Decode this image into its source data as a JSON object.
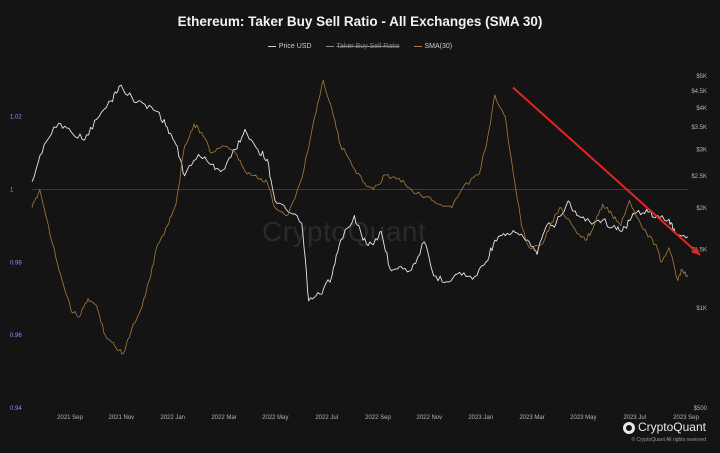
{
  "chart_data": {
    "type": "line",
    "title": "Ethereum: Taker Buy Sell Ratio - All Exchanges (SMA 30)",
    "legend_position": "top-center",
    "legend": [
      {
        "name": "Price USD",
        "color": "#e6e6e6",
        "visible": true
      },
      {
        "name": "Taker Buy Sell Ratio",
        "color": "#8a8a8a",
        "visible": false
      },
      {
        "name": "SMA(30)",
        "color": "#a87a3c",
        "visible": true
      }
    ],
    "x_ticks": [
      "2021 Sep",
      "2021 Nov",
      "2022 Jan",
      "2022 Mar",
      "2022 May",
      "2022 Jul",
      "2022 Sep",
      "2022 Nov",
      "2023 Jan",
      "2023 Mar",
      "2023 May",
      "2023 Jul",
      "2023 Sep"
    ],
    "x_range": [
      "2021-08-01",
      "2023-09-01"
    ],
    "left_axis": {
      "scale": "linear",
      "range": [
        0.94,
        1.035
      ],
      "ticks": [
        "0.94",
        "0.96",
        "0.98",
        "1",
        "1.02"
      ],
      "tick_values": [
        0.94,
        0.96,
        0.98,
        1,
        1.02
      ],
      "color": "#8f8fff"
    },
    "right_axis": {
      "scale": "log",
      "range": [
        500,
        5500
      ],
      "ticks": [
        "$500",
        "$1K",
        "$1.5K",
        "$2K",
        "$2.5K",
        "$3K",
        "$3.5K",
        "$4K",
        "$4.5K",
        "$5K"
      ],
      "tick_values": [
        500,
        1000,
        1500,
        2000,
        2500,
        3000,
        3500,
        4000,
        4500,
        5000
      ]
    },
    "reference_line": 1,
    "grid": false,
    "series": [
      {
        "name": "Price USD",
        "axis": "right",
        "color": "#e6e6e6",
        "points": [
          [
            "2021-08-01",
            2400
          ],
          [
            "2021-08-15",
            3100
          ],
          [
            "2021-09-01",
            3600
          ],
          [
            "2021-09-15",
            3400
          ],
          [
            "2021-10-01",
            3200
          ],
          [
            "2021-10-15",
            3700
          ],
          [
            "2021-11-01",
            4200
          ],
          [
            "2021-11-10",
            4650
          ],
          [
            "2021-11-25",
            4300
          ],
          [
            "2021-12-10",
            4100
          ],
          [
            "2021-12-25",
            3900
          ],
          [
            "2022-01-05",
            3500
          ],
          [
            "2022-01-15",
            3100
          ],
          [
            "2022-01-25",
            2500
          ],
          [
            "2022-02-10",
            2900
          ],
          [
            "2022-02-25",
            2700
          ],
          [
            "2022-03-10",
            2600
          ],
          [
            "2022-03-25",
            3000
          ],
          [
            "2022-04-05",
            3450
          ],
          [
            "2022-04-20",
            3000
          ],
          [
            "2022-05-01",
            2800
          ],
          [
            "2022-05-10",
            2100
          ],
          [
            "2022-05-25",
            1950
          ],
          [
            "2022-06-10",
            1800
          ],
          [
            "2022-06-18",
            1050
          ],
          [
            "2022-07-01",
            1100
          ],
          [
            "2022-07-15",
            1250
          ],
          [
            "2022-07-25",
            1600
          ],
          [
            "2022-08-10",
            1900
          ],
          [
            "2022-08-20",
            1600
          ],
          [
            "2022-09-01",
            1550
          ],
          [
            "2022-09-10",
            1700
          ],
          [
            "2022-09-20",
            1320
          ],
          [
            "2022-10-01",
            1330
          ],
          [
            "2022-10-15",
            1300
          ],
          [
            "2022-10-30",
            1580
          ],
          [
            "2022-11-10",
            1250
          ],
          [
            "2022-11-25",
            1200
          ],
          [
            "2022-12-10",
            1280
          ],
          [
            "2022-12-25",
            1220
          ],
          [
            "2023-01-10",
            1380
          ],
          [
            "2023-01-20",
            1600
          ],
          [
            "2023-02-01",
            1650
          ],
          [
            "2023-02-15",
            1680
          ],
          [
            "2023-03-01",
            1580
          ],
          [
            "2023-03-10",
            1450
          ],
          [
            "2023-03-20",
            1750
          ],
          [
            "2023-04-01",
            1800
          ],
          [
            "2023-04-15",
            2100
          ],
          [
            "2023-04-25",
            1900
          ],
          [
            "2023-05-10",
            1820
          ],
          [
            "2023-05-25",
            1840
          ],
          [
            "2023-06-10",
            1720
          ],
          [
            "2023-06-20",
            1750
          ],
          [
            "2023-07-01",
            1920
          ],
          [
            "2023-07-15",
            1980
          ],
          [
            "2023-07-25",
            1870
          ],
          [
            "2023-08-10",
            1850
          ],
          [
            "2023-08-17",
            1680
          ],
          [
            "2023-09-01",
            1640
          ]
        ]
      },
      {
        "name": "SMA(30)",
        "axis": "left",
        "color": "#a87a3c",
        "points": [
          [
            "2021-08-01",
            0.995
          ],
          [
            "2021-08-10",
            1.0
          ],
          [
            "2021-08-25",
            0.985
          ],
          [
            "2021-09-05",
            0.975
          ],
          [
            "2021-09-15",
            0.967
          ],
          [
            "2021-09-25",
            0.965
          ],
          [
            "2021-10-05",
            0.97
          ],
          [
            "2021-10-15",
            0.968
          ],
          [
            "2021-10-25",
            0.96
          ],
          [
            "2021-11-05",
            0.957
          ],
          [
            "2021-11-15",
            0.955
          ],
          [
            "2021-11-25",
            0.962
          ],
          [
            "2021-12-05",
            0.967
          ],
          [
            "2021-12-15",
            0.975
          ],
          [
            "2021-12-25",
            0.985
          ],
          [
            "2022-01-05",
            0.99
          ],
          [
            "2022-01-15",
            0.996
          ],
          [
            "2022-01-25",
            1.012
          ],
          [
            "2022-02-05",
            1.018
          ],
          [
            "2022-02-15",
            1.015
          ],
          [
            "2022-02-25",
            1.01
          ],
          [
            "2022-03-10",
            1.012
          ],
          [
            "2022-03-25",
            1.01
          ],
          [
            "2022-04-05",
            1.005
          ],
          [
            "2022-04-20",
            1.003
          ],
          [
            "2022-05-01",
            1.002
          ],
          [
            "2022-05-10",
            0.995
          ],
          [
            "2022-05-25",
            0.993
          ],
          [
            "2022-06-10",
            1.003
          ],
          [
            "2022-06-25",
            1.02
          ],
          [
            "2022-07-05",
            1.03
          ],
          [
            "2022-07-15",
            1.022
          ],
          [
            "2022-07-25",
            1.012
          ],
          [
            "2022-08-05",
            1.008
          ],
          [
            "2022-08-20",
            1.002
          ],
          [
            "2022-09-01",
            1.0
          ],
          [
            "2022-09-15",
            1.004
          ],
          [
            "2022-10-01",
            1.003
          ],
          [
            "2022-10-15",
            1.0
          ],
          [
            "2022-11-01",
            0.998
          ],
          [
            "2022-11-15",
            0.996
          ],
          [
            "2022-12-01",
            0.995
          ],
          [
            "2022-12-15",
            1.001
          ],
          [
            "2023-01-01",
            1.004
          ],
          [
            "2023-01-10",
            1.012
          ],
          [
            "2023-01-20",
            1.026
          ],
          [
            "2023-02-01",
            1.02
          ],
          [
            "2023-02-10",
            1.005
          ],
          [
            "2023-02-20",
            0.99
          ],
          [
            "2023-03-01",
            0.984
          ],
          [
            "2023-03-15",
            0.985
          ],
          [
            "2023-03-25",
            0.99
          ],
          [
            "2023-04-05",
            0.995
          ],
          [
            "2023-04-15",
            0.992
          ],
          [
            "2023-04-25",
            0.988
          ],
          [
            "2023-05-05",
            0.986
          ],
          [
            "2023-05-15",
            0.99
          ],
          [
            "2023-05-25",
            0.996
          ],
          [
            "2023-06-05",
            0.993
          ],
          [
            "2023-06-15",
            0.99
          ],
          [
            "2023-06-25",
            0.997
          ],
          [
            "2023-07-05",
            0.992
          ],
          [
            "2023-07-15",
            0.988
          ],
          [
            "2023-07-25",
            0.985
          ],
          [
            "2023-08-01",
            0.98
          ],
          [
            "2023-08-10",
            0.984
          ],
          [
            "2023-08-20",
            0.975
          ],
          [
            "2023-08-25",
            0.978
          ],
          [
            "2023-09-01",
            0.976
          ]
        ]
      }
    ],
    "annotation": {
      "type": "arrow",
      "color": "#e3261f",
      "from": [
        "2023-02-10",
        1.028
      ],
      "to": [
        "2023-09-01",
        0.982
      ]
    }
  },
  "watermark": "CryptoQuant",
  "brand": "CryptoQuant",
  "copyright": "© CryptoQuant All rights reserved"
}
